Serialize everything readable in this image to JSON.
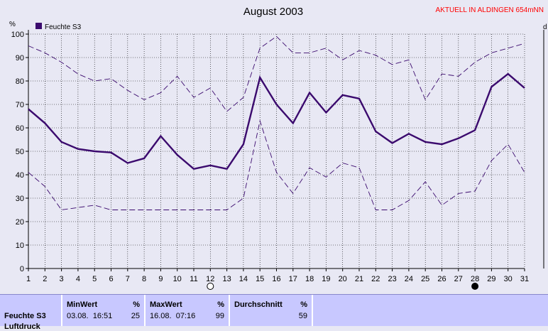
{
  "chart_data": {
    "type": "line",
    "title": "August 2003",
    "ylabel": "%",
    "right_axis_label": "d",
    "ylim": [
      0,
      100
    ],
    "yticks": [
      0,
      10,
      20,
      30,
      40,
      50,
      60,
      70,
      80,
      90,
      100
    ],
    "x": [
      1,
      2,
      3,
      4,
      5,
      6,
      7,
      8,
      9,
      10,
      11,
      12,
      13,
      14,
      15,
      16,
      17,
      18,
      19,
      20,
      21,
      22,
      23,
      24,
      25,
      26,
      27,
      28,
      29,
      30,
      31
    ],
    "xlim": [
      1,
      31
    ],
    "grid": true,
    "legend_position": "top-left",
    "series": [
      {
        "name": "Feuchte S3",
        "style": "solid",
        "color": "#3b0a6e",
        "values": [
          68,
          62,
          54,
          51,
          50,
          49.5,
          45,
          47,
          56.5,
          48.5,
          42.5,
          44,
          42.5,
          53,
          81.5,
          70,
          62,
          75,
          66.5,
          74,
          72.5,
          58.5,
          53.5,
          57.5,
          54,
          53,
          55.5,
          59,
          77.5,
          83,
          77
        ]
      },
      {
        "name": "",
        "style": "dashed",
        "color": "#3b0a6e",
        "values": [
          95,
          92,
          88,
          83,
          80,
          81,
          76,
          72,
          75,
          82,
          73,
          77,
          67,
          73,
          94,
          99,
          92,
          92,
          94,
          89,
          93,
          91,
          87,
          89,
          72,
          83,
          82,
          88,
          92,
          94,
          96
        ]
      },
      {
        "name": "",
        "style": "dashed",
        "color": "#3b0a6e",
        "values": [
          41,
          35,
          25,
          26,
          27,
          25,
          25,
          25,
          25,
          25,
          25,
          25,
          25,
          30,
          63,
          41,
          32,
          43,
          39,
          45,
          43,
          25,
          25,
          29,
          37,
          27,
          32,
          33,
          46,
          53,
          41
        ]
      }
    ],
    "moon_markers": [
      {
        "day": 12,
        "phase": "full-moon"
      },
      {
        "day": 28,
        "phase": "new-moon"
      }
    ]
  },
  "header": {
    "station_info": "AKTUELL IN ALDINGEN 654mNN"
  },
  "stats": {
    "row_label": "Feuchte S3",
    "row_label_2": "Luftdruck",
    "min": {
      "header": "MinWert",
      "unit": "%",
      "datetime": "03.08.  16:51",
      "value": "25"
    },
    "max": {
      "header": "MaxWert",
      "unit": "%",
      "datetime": "16.08.  07:16",
      "value": "99"
    },
    "avg": {
      "header": "Durchschnitt",
      "unit": "%",
      "value": "59"
    }
  },
  "colors": {
    "background": "#e8e8f4",
    "line": "#3b0a6e",
    "grid": "#000000",
    "info_text": "#ff0000",
    "stats_bg": "#c8c8ff"
  }
}
